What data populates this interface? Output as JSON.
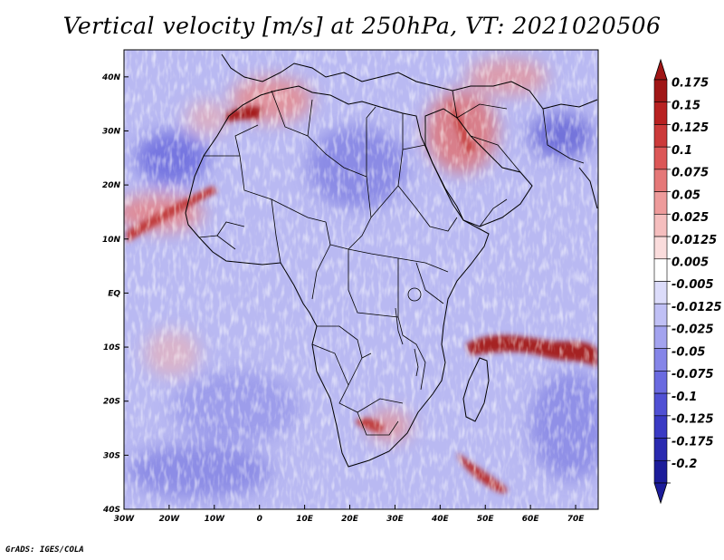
{
  "title": "Vertical velocity [m/s] at 250hPa, VT: 2021020506",
  "footer": "GrADS: IGES/COLA",
  "map": {
    "lon_range": [
      -30,
      75
    ],
    "lat_range": [
      -40,
      45
    ],
    "lat_ticks": [
      {
        "value": 40,
        "label": "40N"
      },
      {
        "value": 30,
        "label": "30N"
      },
      {
        "value": 20,
        "label": "20N"
      },
      {
        "value": 10,
        "label": "10N"
      },
      {
        "value": 0,
        "label": "EQ"
      },
      {
        "value": -10,
        "label": "10S"
      },
      {
        "value": -20,
        "label": "20S"
      },
      {
        "value": -30,
        "label": "30S"
      },
      {
        "value": -40,
        "label": "40S"
      }
    ],
    "lon_ticks": [
      {
        "value": -30,
        "label": "30W"
      },
      {
        "value": -20,
        "label": "20W"
      },
      {
        "value": -10,
        "label": "10W"
      },
      {
        "value": 0,
        "label": "0"
      },
      {
        "value": 10,
        "label": "10E"
      },
      {
        "value": 20,
        "label": "20E"
      },
      {
        "value": 30,
        "label": "30E"
      },
      {
        "value": 40,
        "label": "40E"
      },
      {
        "value": 50,
        "label": "50E"
      },
      {
        "value": 60,
        "label": "60E"
      },
      {
        "value": 70,
        "label": "70E"
      }
    ]
  },
  "colorbar": {
    "levels": [
      {
        "label": "0.175",
        "color": "#a01616"
      },
      {
        "label": "0.15",
        "color": "#b82121"
      },
      {
        "label": "0.125",
        "color": "#cc3a3a"
      },
      {
        "label": "0.1",
        "color": "#dc5757"
      },
      {
        "label": "0.075",
        "color": "#e57878"
      },
      {
        "label": "0.05",
        "color": "#ee9b9b"
      },
      {
        "label": "0.025",
        "color": "#f5bebe"
      },
      {
        "label": "0.0125",
        "color": "#fadcdc"
      },
      {
        "label": "0.005",
        "color": "#ffffff"
      },
      {
        "label": "-0.005",
        "color": "#dcdcfa"
      },
      {
        "label": "-0.0125",
        "color": "#c0c0f5"
      },
      {
        "label": "-0.025",
        "color": "#a3a3ef"
      },
      {
        "label": "-0.05",
        "color": "#8585e8"
      },
      {
        "label": "-0.075",
        "color": "#6a6ae0"
      },
      {
        "label": "-0.1",
        "color": "#5050d4"
      },
      {
        "label": "-0.125",
        "color": "#3a3ac4"
      },
      {
        "label": "-0.175",
        "color": "#2a2ab0"
      },
      {
        "label": "-0.2",
        "color": "#1c1c9a"
      }
    ],
    "top_arrow_color": "#a01616",
    "bottom_arrow_color": "#1c1c9a"
  }
}
